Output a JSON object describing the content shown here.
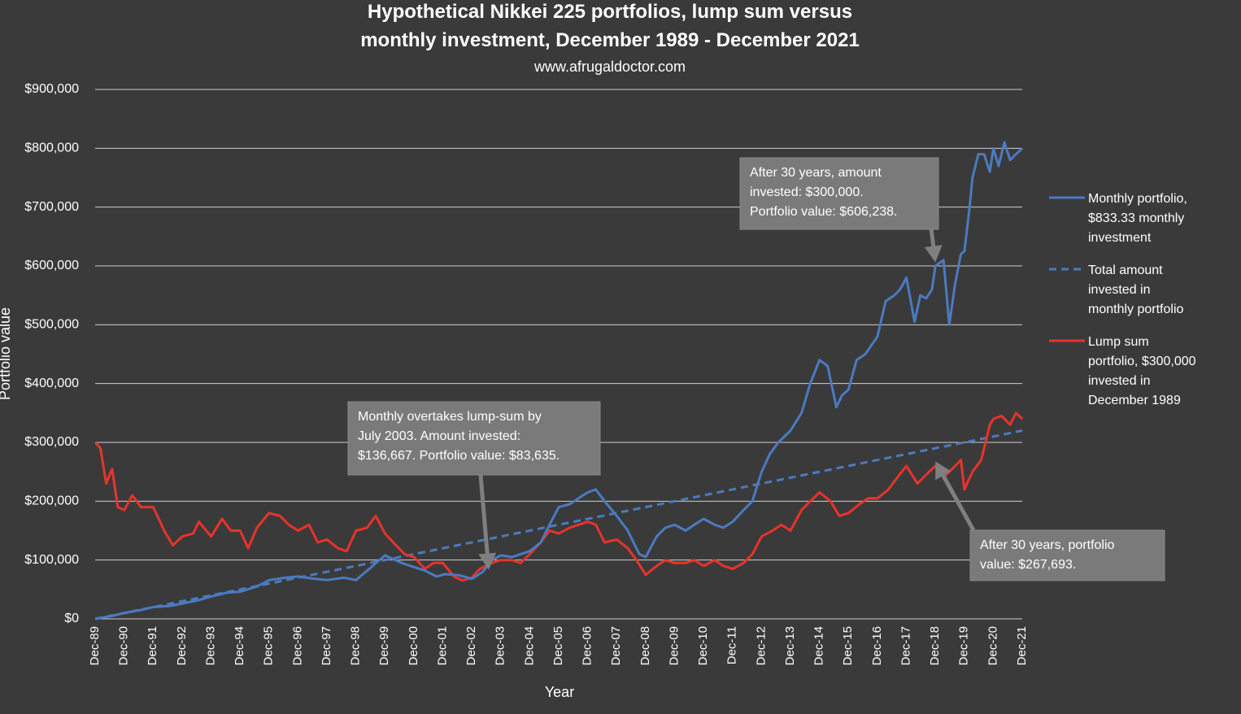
{
  "chart_data": {
    "type": "line",
    "title": [
      "Hypothetical Nikkei 225 portfolios, lump sum versus",
      "monthly investment, December 1989 - December 2021"
    ],
    "subtitle": "www.afrugaldoctor.com",
    "xlabel": "Year",
    "ylabel": "Portfolio value",
    "ylim": [
      0,
      900000
    ],
    "y_ticks": [
      0,
      100000,
      200000,
      300000,
      400000,
      500000,
      600000,
      700000,
      800000,
      900000
    ],
    "y_tick_labels": [
      "$0",
      "$100,000",
      "$200,000",
      "$300,000",
      "$400,000",
      "$500,000",
      "$600,000",
      "$700,000",
      "$800,000",
      "$900,000"
    ],
    "x_range": [
      1989.917,
      2021.917
    ],
    "categories": [
      "Dec-89",
      "Dec-90",
      "Dec-91",
      "Dec-92",
      "Dec-93",
      "Dec-94",
      "Dec-95",
      "Dec-96",
      "Dec-97",
      "Dec-98",
      "Dec-99",
      "Dec-00",
      "Dec-01",
      "Dec-02",
      "Dec-03",
      "Dec-04",
      "Dec-05",
      "Dec-06",
      "Dec-07",
      "Dec-08",
      "Dec-09",
      "Dec-10",
      "Dec-11",
      "Dec-12",
      "Dec-13",
      "Dec-14",
      "Dec-15",
      "Dec-16",
      "Dec-17",
      "Dec-18",
      "Dec-19",
      "Dec-20",
      "Dec-21"
    ],
    "grid": true,
    "legend_position": "right",
    "colors": {
      "background": "#3a3a3a",
      "monthly": "#4a7bbf",
      "invested": "#4a7bbf",
      "lump": "#e8332b",
      "annotation_box": "#7a7a7a"
    },
    "series": [
      {
        "name": "Monthly portfolio, $833.33 monthly investment",
        "legend_lines": [
          "Monthly portfolio,",
          "$833.33 monthly",
          "investment"
        ],
        "style": "solid",
        "x": [
          1989.92,
          1990.5,
          1990.92,
          1991.5,
          1991.92,
          1992.5,
          1992.92,
          1993.5,
          1993.92,
          1994.5,
          1994.92,
          1995.5,
          1995.92,
          1996.5,
          1996.92,
          1997.5,
          1997.92,
          1998.5,
          1998.92,
          1999.5,
          1999.92,
          2000.5,
          2000.92,
          2001.3,
          2001.7,
          2002.0,
          2002.5,
          2002.92,
          2003.3,
          2003.6,
          2003.92,
          2004.3,
          2004.6,
          2004.92,
          2005.3,
          2005.6,
          2005.92,
          2006.3,
          2006.6,
          2006.92,
          2007.2,
          2007.5,
          2007.92,
          2008.3,
          2008.7,
          2008.92,
          2009.3,
          2009.6,
          2009.92,
          2010.3,
          2010.6,
          2010.92,
          2011.3,
          2011.6,
          2011.92,
          2012.3,
          2012.6,
          2012.92,
          2013.2,
          2013.5,
          2013.92,
          2014.3,
          2014.6,
          2014.92,
          2015.2,
          2015.5,
          2015.7,
          2015.92,
          2016.2,
          2016.5,
          2016.92,
          2017.2,
          2017.5,
          2017.7,
          2017.92,
          2018.2,
          2018.4,
          2018.6,
          2018.8,
          2018.92,
          2019.2,
          2019.4,
          2019.6,
          2019.8,
          2019.92,
          2020.1,
          2020.2,
          2020.4,
          2020.6,
          2020.8,
          2020.92,
          2021.1,
          2021.3,
          2021.5,
          2021.7,
          2021.92
        ],
        "y": [
          0,
          5000,
          10000,
          15000,
          20000,
          22000,
          26000,
          32000,
          38000,
          45000,
          46000,
          55000,
          66000,
          70000,
          72000,
          68000,
          66000,
          70000,
          66000,
          90000,
          108000,
          95000,
          88000,
          82000,
          72000,
          76000,
          74000,
          68000,
          80000,
          100000,
          108000,
          105000,
          110000,
          115000,
          130000,
          160000,
          190000,
          195000,
          205000,
          215000,
          220000,
          200000,
          175000,
          150000,
          110000,
          105000,
          140000,
          155000,
          160000,
          150000,
          160000,
          170000,
          160000,
          155000,
          165000,
          185000,
          200000,
          250000,
          280000,
          300000,
          320000,
          350000,
          400000,
          440000,
          430000,
          360000,
          380000,
          390000,
          440000,
          450000,
          480000,
          540000,
          550000,
          560000,
          580000,
          505000,
          550000,
          545000,
          560000,
          600000,
          610000,
          500000,
          570000,
          620000,
          625000,
          700000,
          750000,
          790000,
          790000,
          760000,
          800000,
          770000,
          810000,
          780000,
          790000,
          800000
        ]
      },
      {
        "name": "Total amount invested in monthly portfolio",
        "legend_lines": [
          "Total amount",
          "invested in",
          "monthly portfolio"
        ],
        "style": "dashed",
        "x": [
          1989.92,
          2021.92
        ],
        "y": [
          0,
          320000
        ]
      },
      {
        "name": "Lump sum portfolio, $300,000 invested in December 1989",
        "legend_lines": [
          "Lump sum",
          "portfolio, $300,000",
          "invested in",
          "December 1989"
        ],
        "style": "solid",
        "x": [
          1989.92,
          1990.1,
          1990.3,
          1990.5,
          1990.7,
          1990.92,
          1991.2,
          1991.5,
          1991.92,
          1992.3,
          1992.6,
          1992.92,
          1993.3,
          1993.5,
          1993.92,
          1994.3,
          1994.6,
          1994.92,
          1995.2,
          1995.5,
          1995.92,
          1996.3,
          1996.6,
          1996.92,
          1997.3,
          1997.6,
          1997.92,
          1998.3,
          1998.6,
          1998.92,
          1999.3,
          1999.6,
          1999.92,
          2000.3,
          2000.6,
          2000.92,
          2001.3,
          2001.6,
          2001.92,
          2002.3,
          2002.6,
          2002.92,
          2003.2,
          2003.6,
          2003.92,
          2004.3,
          2004.6,
          2004.92,
          2005.3,
          2005.6,
          2005.92,
          2006.3,
          2006.6,
          2006.92,
          2007.2,
          2007.5,
          2007.92,
          2008.3,
          2008.6,
          2008.92,
          2009.3,
          2009.6,
          2009.92,
          2010.3,
          2010.6,
          2010.92,
          2011.3,
          2011.6,
          2011.92,
          2012.3,
          2012.6,
          2012.92,
          2013.3,
          2013.6,
          2013.92,
          2014.3,
          2014.6,
          2014.92,
          2015.3,
          2015.6,
          2015.92,
          2016.3,
          2016.6,
          2016.92,
          2017.3,
          2017.6,
          2017.92,
          2018.3,
          2018.6,
          2018.92,
          2019.2,
          2019.5,
          2019.8,
          2019.92,
          2020.2,
          2020.5,
          2020.8,
          2020.92,
          2021.2,
          2021.5,
          2021.7,
          2021.92
        ],
        "y": [
          300000,
          290000,
          230000,
          255000,
          190000,
          185000,
          210000,
          190000,
          190000,
          150000,
          125000,
          140000,
          145000,
          165000,
          140000,
          170000,
          150000,
          150000,
          120000,
          155000,
          180000,
          175000,
          160000,
          150000,
          160000,
          130000,
          135000,
          120000,
          115000,
          150000,
          155000,
          175000,
          145000,
          125000,
          110000,
          105000,
          85000,
          95000,
          95000,
          72000,
          65000,
          70000,
          85000,
          95000,
          100000,
          100000,
          95000,
          110000,
          130000,
          150000,
          145000,
          155000,
          160000,
          165000,
          160000,
          130000,
          135000,
          120000,
          100000,
          75000,
          90000,
          100000,
          95000,
          95000,
          100000,
          90000,
          100000,
          90000,
          85000,
          95000,
          110000,
          140000,
          150000,
          160000,
          150000,
          185000,
          200000,
          215000,
          200000,
          175000,
          180000,
          195000,
          205000,
          205000,
          220000,
          240000,
          260000,
          230000,
          245000,
          260000,
          240000,
          255000,
          270000,
          220000,
          250000,
          270000,
          330000,
          340000,
          345000,
          330000,
          350000,
          340000
        ]
      }
    ],
    "annotations": [
      {
        "lines": [
          "After 30 years, amount",
          "invested: $300,000.",
          "Portfolio value: $606,238."
        ],
        "target": {
          "x": 2018.92,
          "y": 606238
        }
      },
      {
        "lines": [
          "Monthly overtakes lump-sum by",
          "July 2003. Amount invested:",
          "$136,667. Portfolio value: $83,635."
        ],
        "target": {
          "x": 2003.5,
          "y": 83635
        }
      },
      {
        "lines": [
          "After 30 years, portfolio",
          "value: $267,693."
        ],
        "target": {
          "x": 2018.92,
          "y": 267693
        }
      }
    ]
  }
}
